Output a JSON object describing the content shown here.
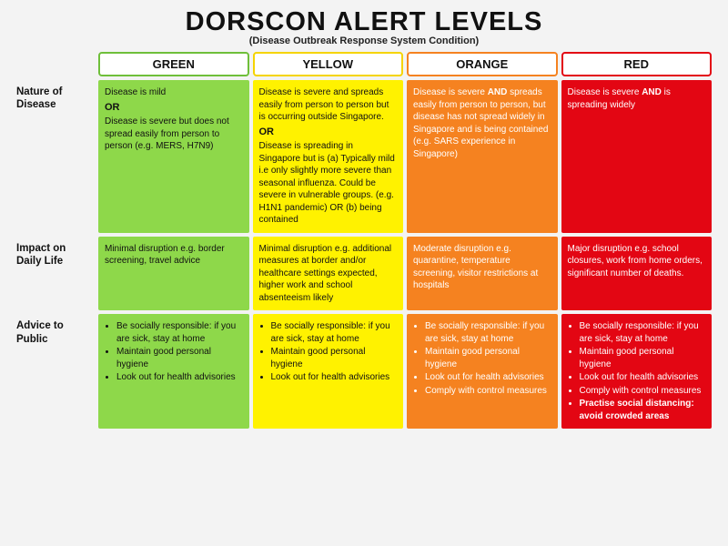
{
  "title": "DORSCON ALERT LEVELS",
  "subtitle": "(Disease Outbreak Response System Condition)",
  "row_headers": [
    "Nature of Disease",
    "Impact on Daily Life",
    "Advice to Public"
  ],
  "levels": [
    {
      "name": "GREEN",
      "header_border": "#6fbf3a",
      "cell_bg": "#8ed84a",
      "text_class": "dark-text",
      "nature": {
        "type": "text_or",
        "parts": [
          "Disease is mild",
          "Disease is severe but does not spread easily from person to person (e.g. MERS, H7N9)"
        ]
      },
      "impact": "Minimal disruption e.g. border screening, travel advice",
      "advice": [
        "Be socially responsible: if you are sick, stay at home",
        "Maintain good personal hygiene",
        "Look out for health advisories"
      ]
    },
    {
      "name": "YELLOW",
      "header_border": "#f5d400",
      "cell_bg": "#fff200",
      "text_class": "dark-text",
      "nature": {
        "type": "text_or",
        "parts": [
          "Disease is severe and spreads easily from person to person but is occurring outside Singapore.",
          "Disease is spreading in Singapore but is (a) Typically mild i.e only slightly more severe than seasonal influenza. Could be severe in vulnerable groups. (e.g. H1N1 pandemic) OR (b) being contained"
        ]
      },
      "impact": "Minimal disruption e.g. additional measures at border and/or healthcare settings expected, higher work and school absenteeism likely",
      "advice": [
        "Be socially responsible: if you are sick, stay at home",
        "Maintain good personal hygiene",
        "Look out for health advisories"
      ]
    },
    {
      "name": "ORANGE",
      "header_border": "#f58220",
      "cell_bg": "#f58220",
      "text_class": "light-text",
      "nature": {
        "type": "text_and",
        "pre": "Disease is severe ",
        "bold": "AND",
        "post": " spreads easily from person to person, but disease has not spread widely in Singapore and is being contained (e.g. SARS experience in Singapore)"
      },
      "impact": "Moderate disruption e.g. quarantine, temperature screening, visitor restrictions at hospitals",
      "advice": [
        "Be socially responsible: if you are sick, stay at home",
        "Maintain good personal hygiene",
        "Look out for health advisories",
        "Comply with control measures"
      ]
    },
    {
      "name": "RED",
      "header_border": "#e30613",
      "cell_bg": "#e30613",
      "text_class": "light-text",
      "nature": {
        "type": "text_and",
        "pre": "Disease is severe ",
        "bold": "AND",
        "post": " is spreading widely"
      },
      "impact": "Major disruption e.g. school closures, work from home orders, significant number of deaths.",
      "advice": [
        "Be socially responsible: if you are sick, stay at home",
        "Maintain good personal hygiene",
        "Look out for health advisories",
        "Comply with control measures",
        {
          "bold": true,
          "text": "Practise social distancing: avoid crowded areas"
        }
      ]
    }
  ]
}
